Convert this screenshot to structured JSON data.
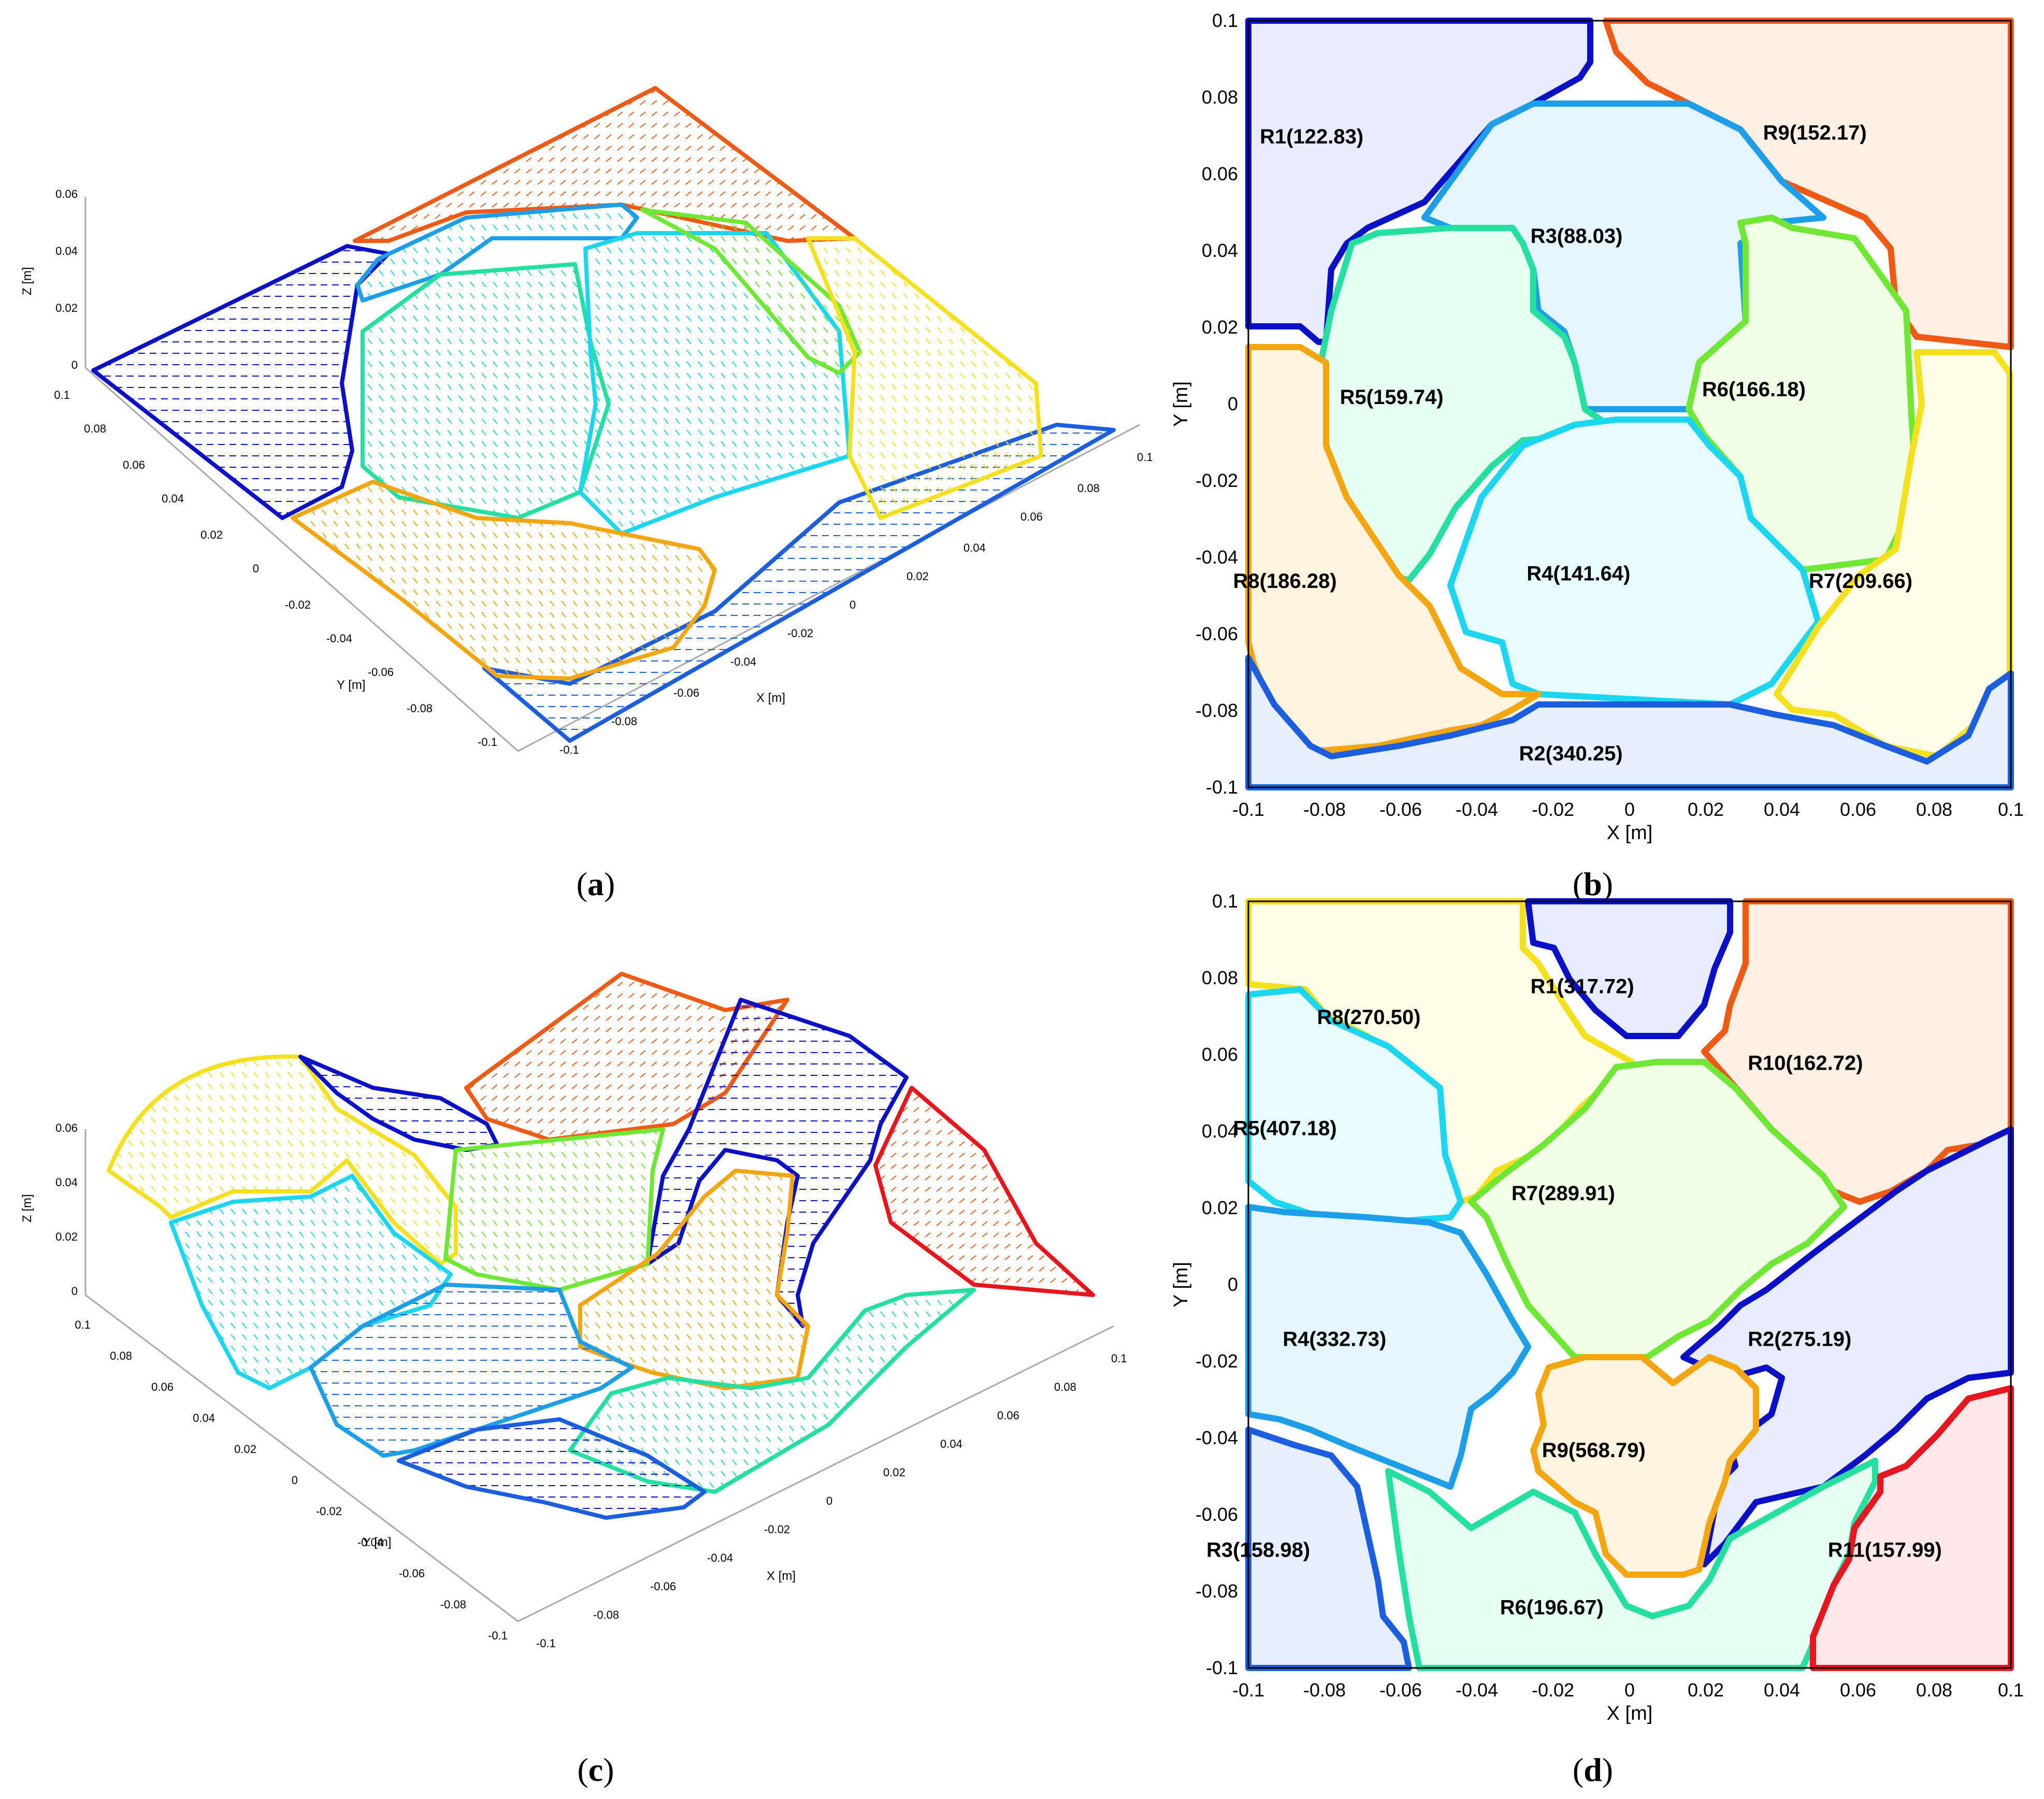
{
  "captions": {
    "a": "a",
    "b": "b",
    "c": "c",
    "d": "d"
  },
  "colors": {
    "R_blue_dark": "#0a10c8",
    "R_blue": "#1b5ee0",
    "R_orange": "#f05a14",
    "R_cyan": "#1ad6f0",
    "R_green": "#24e0a0",
    "R_lightgreen": "#6ee832",
    "R_yellow": "#f5f01e",
    "R_amber": "#f5a60e",
    "R_red": "#e8141e",
    "R_lightblue": "#1c9ee8"
  },
  "panel_b": {
    "xlabel": "X [m]",
    "ylabel": "Y [m]",
    "xticks": [
      "-0.1",
      "-0.08",
      "-0.06",
      "-0.04",
      "-0.02",
      "0",
      "0.02",
      "0.04",
      "0.06",
      "0.08",
      "0.1"
    ],
    "yticks": [
      "0.1",
      "0.08",
      "0.06",
      "0.04",
      "0.02",
      "0",
      "-0.02",
      "-0.04",
      "-0.06",
      "-0.08",
      "-0.1"
    ],
    "labels": [
      {
        "text": "R1(122.83)",
        "x": -0.097,
        "y": 0.068
      },
      {
        "text": "R9(152.17)",
        "x": 0.035,
        "y": 0.069
      },
      {
        "text": "R3(88.03)",
        "x": -0.026,
        "y": 0.042
      },
      {
        "text": "R5(159.74)",
        "x": -0.076,
        "y": 0.0
      },
      {
        "text": "R6(166.18)",
        "x": 0.019,
        "y": 0.002
      },
      {
        "text": "R8(186.28)",
        "x": -0.104,
        "y": -0.048
      },
      {
        "text": "R4(141.64)",
        "x": -0.027,
        "y": -0.046
      },
      {
        "text": "R7(209.66)",
        "x": 0.047,
        "y": -0.048
      },
      {
        "text": "R2(340.25)",
        "x": -0.029,
        "y": -0.093
      }
    ]
  },
  "panel_d": {
    "xlabel": "X [m]",
    "ylabel": "Y [m]",
    "xticks": [
      "-0.1",
      "-0.08",
      "-0.06",
      "-0.04",
      "-0.02",
      "0",
      "0.02",
      "0.04",
      "0.06",
      "0.08",
      "0.1"
    ],
    "yticks": [
      "0.1",
      "0.08",
      "0.06",
      "0.04",
      "0.02",
      "0",
      "-0.02",
      "-0.04",
      "-0.06",
      "-0.08",
      "-0.1"
    ],
    "labels": [
      {
        "text": "R1(317.72)",
        "x": -0.026,
        "y": 0.076
      },
      {
        "text": "R8(270.50)",
        "x": -0.082,
        "y": 0.068
      },
      {
        "text": "R10(162.72)",
        "x": 0.031,
        "y": 0.056
      },
      {
        "text": "R5(407.18)",
        "x": -0.104,
        "y": 0.039
      },
      {
        "text": "R7(289.91)",
        "x": -0.031,
        "y": 0.022
      },
      {
        "text": "R4(332.73)",
        "x": -0.091,
        "y": -0.016
      },
      {
        "text": "R2(275.19)",
        "x": 0.031,
        "y": -0.016
      },
      {
        "text": "R9(568.79)",
        "x": -0.023,
        "y": -0.045
      },
      {
        "text": "R3(158.98)",
        "x": -0.111,
        "y": -0.071
      },
      {
        "text": "R6(196.67)",
        "x": -0.034,
        "y": -0.086
      },
      {
        "text": "R11(157.99)",
        "x": 0.052,
        "y": -0.071
      }
    ]
  },
  "panel_a": {
    "zlabel": "Z [m]",
    "ylabel": "Y [m]",
    "xlabel": "X [m]",
    "zticks": [
      "0.06",
      "0.04",
      "0.02",
      "0"
    ],
    "yticks": [
      "0.1",
      "0.08",
      "0.06",
      "0.04",
      "0.02",
      "0",
      "-0.02",
      "-0.04",
      "-0.06",
      "-0.08",
      "-0.1"
    ],
    "xticks": [
      "0.1",
      "0.08",
      "0.06",
      "0.04",
      "0.02",
      "0",
      "-0.02",
      "-0.04",
      "-0.06",
      "-0.08",
      "-0.1"
    ]
  },
  "panel_c": {
    "zlabel": "Z [m]",
    "ylabel": "Y [m]",
    "xlabel": "X [m]",
    "zticks": [
      "0.06",
      "0.04",
      "0.02",
      "0"
    ],
    "yticks": [
      "0.1",
      "0.08",
      "0.06",
      "0.04",
      "0.02",
      "0",
      "-0.02",
      "-0.04",
      "-0.06",
      "-0.08",
      "-0.1"
    ],
    "xticks": [
      "0.1",
      "0.08",
      "0.06",
      "0.04",
      "0.02",
      "0",
      "-0.02",
      "-0.04",
      "-0.06",
      "-0.08",
      "-0.1"
    ]
  }
}
